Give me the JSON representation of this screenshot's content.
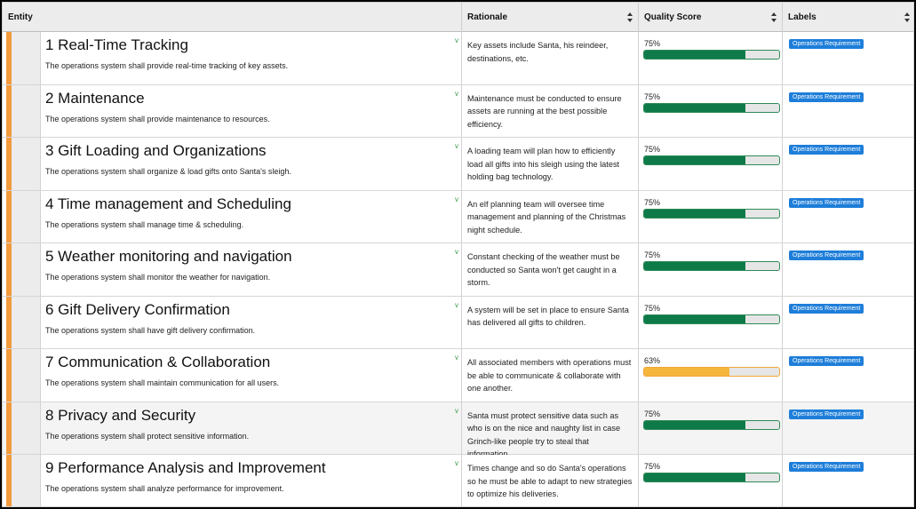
{
  "header": {
    "entity": "Entity",
    "rationale": "Rationale",
    "quality": "Quality Score",
    "labels": "Labels"
  },
  "colors": {
    "good": "#0e7a49",
    "warn": "#f5b53a",
    "accent": "#f39a3c",
    "badge": "#1e7ed9"
  },
  "rows": [
    {
      "title": "1 Real-Time Tracking",
      "desc": "The operations system shall provide real-time tracking of key assets.",
      "rationale": "Key assets include Santa, his reindeer, destinations, etc.",
      "score": "75%",
      "score_value": 0.75,
      "label": "Operations Requirement",
      "chevron": "v"
    },
    {
      "title": "2 Maintenance",
      "desc": "The operations system shall provide maintenance to resources.",
      "rationale": "Maintenance must be conducted to ensure assets are running at the best possible efficiency.",
      "score": "75%",
      "score_value": 0.75,
      "label": "Operations Requirement",
      "chevron": "v"
    },
    {
      "title": "3 Gift Loading and Organizations",
      "desc": "The operations system shall organize & load gifts onto Santa's sleigh.",
      "rationale": "A loading team will plan how to efficiently load all gifts into his sleigh using the latest holding bag technology.",
      "score": "75%",
      "score_value": 0.75,
      "label": "Operations Requirement",
      "chevron": "v"
    },
    {
      "title": "4 Time management and Scheduling",
      "desc": "The operations system shall manage time & scheduling.",
      "rationale": "An elf planning team will oversee time management and planning of the Christmas night schedule.",
      "score": "75%",
      "score_value": 0.75,
      "label": "Operations Requirement",
      "chevron": "v"
    },
    {
      "title": "5 Weather monitoring and navigation",
      "desc": "The operations system shall monitor the weather for navigation.",
      "rationale": "Constant checking of the weather must be conducted so Santa won't get caught in a storm.",
      "score": "75%",
      "score_value": 0.75,
      "label": "Operations Requirement",
      "chevron": "v"
    },
    {
      "title": "6 Gift Delivery Confirmation",
      "desc": "The operations system shall have gift delivery confirmation.",
      "rationale": "A system will be set in place to ensure Santa has delivered all gifts to children.",
      "score": "75%",
      "score_value": 0.75,
      "label": "Operations Requirement",
      "chevron": "v"
    },
    {
      "title": "7 Communication & Collaboration",
      "desc": "The operations system shall maintain communication for all users.",
      "rationale": "All associated members with operations must be able to communicate & collaborate with one another.",
      "score": "63%",
      "score_value": 0.63,
      "label": "Operations Requirement",
      "chevron": "v"
    },
    {
      "title": "8 Privacy and Security",
      "desc": "The operations system shall protect sensitive information.",
      "rationale": "Santa must protect sensitive data such as who is on the nice and naughty list in case Grinch-like people try to steal that information.",
      "score": "75%",
      "score_value": 0.75,
      "label": "Operations Requirement",
      "chevron": "v"
    },
    {
      "title": "9 Performance Analysis and Improvement",
      "desc": "The operations system shall analyze performance for improvement.",
      "rationale": "Times change and so do Santa's operations so he must be able to adapt to new strategies to optimize his deliveries.",
      "score": "75%",
      "score_value": 0.75,
      "label": "Operations Requirement",
      "chevron": "v"
    }
  ]
}
